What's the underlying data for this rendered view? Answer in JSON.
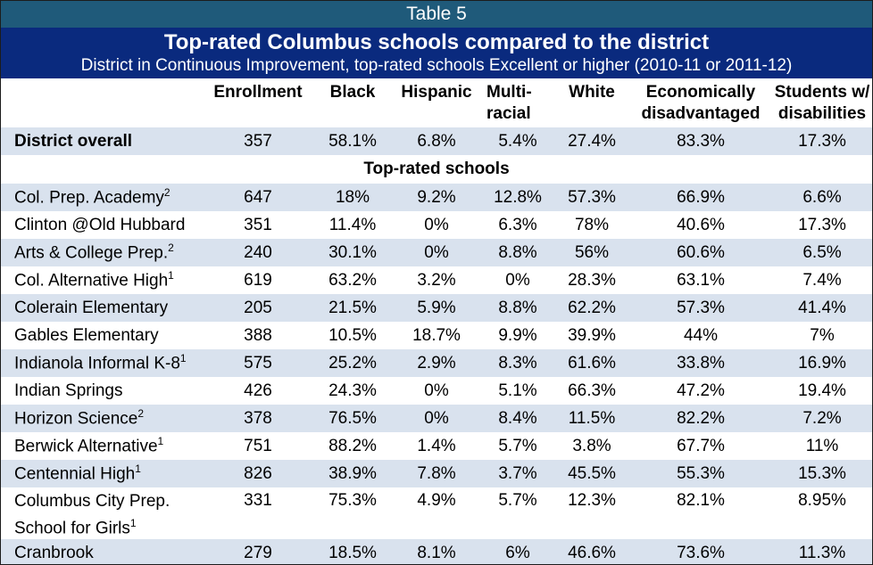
{
  "table_label": "Table 5",
  "title": "Top-rated Columbus schools compared to the district",
  "subtitle": "District in Continuous Improvement, top-rated schools Excellent or higher (2010-11 or 2011-12)",
  "columns": [
    {
      "line1": "",
      "line2": ""
    },
    {
      "line1": "Enrollment",
      "line2": ""
    },
    {
      "line1": "Black",
      "line2": ""
    },
    {
      "line1": "Hispanic",
      "line2": ""
    },
    {
      "line1": "Multi-",
      "line2": "racial"
    },
    {
      "line1": "White",
      "line2": ""
    },
    {
      "line1": "Economically",
      "line2": "disadvantaged"
    },
    {
      "line1": "Students w/",
      "line2": "disabilities"
    }
  ],
  "district": {
    "name": "District overall",
    "values": [
      "357",
      "58.1%",
      "6.8%",
      "5.4%",
      "27.4%",
      "83.3%",
      "17.3%"
    ]
  },
  "section_label": "Top-rated schools",
  "schools": [
    {
      "name": "Col. Prep. Academy",
      "note": "2",
      "values": [
        "647",
        "18%",
        "9.2%",
        "12.8%",
        "57.3%",
        "66.9%",
        "6.6%"
      ]
    },
    {
      "name": "Clinton @Old Hubbard",
      "note": "",
      "values": [
        "351",
        "11.4%",
        "0%",
        "6.3%",
        "78%",
        "40.6%",
        "17.3%"
      ]
    },
    {
      "name": "Arts & College Prep.",
      "note": "2",
      "values": [
        "240",
        "30.1%",
        "0%",
        "8.8%",
        "56%",
        "60.6%",
        "6.5%"
      ]
    },
    {
      "name": "Col. Alternative High",
      "note": "1",
      "values": [
        "619",
        "63.2%",
        "3.2%",
        "0%",
        "28.3%",
        "63.1%",
        "7.4%"
      ]
    },
    {
      "name": "Colerain Elementary",
      "note": "",
      "values": [
        "205",
        "21.5%",
        "5.9%",
        "8.8%",
        "62.2%",
        "57.3%",
        "41.4%"
      ]
    },
    {
      "name": "Gables Elementary",
      "note": "",
      "values": [
        "388",
        "10.5%",
        "18.7%",
        "9.9%",
        "39.9%",
        "44%",
        "7%"
      ]
    },
    {
      "name": "Indianola Informal K-8",
      "note": "1",
      "values": [
        "575",
        "25.2%",
        "2.9%",
        "8.3%",
        "61.6%",
        "33.8%",
        "16.9%"
      ]
    },
    {
      "name": "Indian Springs",
      "note": "",
      "values": [
        "426",
        "24.3%",
        "0%",
        "5.1%",
        "66.3%",
        "47.2%",
        "19.4%"
      ]
    },
    {
      "name": "Horizon Science",
      "note": "2",
      "values": [
        "378",
        "76.5%",
        "0%",
        "8.4%",
        "11.5%",
        "82.2%",
        "7.2%"
      ]
    },
    {
      "name": "Berwick Alternative",
      "note": "1",
      "values": [
        "751",
        "88.2%",
        "1.4%",
        "5.7%",
        "3.8%",
        "67.7%",
        "11%"
      ]
    },
    {
      "name": "Centennial High",
      "note": "1",
      "values": [
        "826",
        "38.9%",
        "7.8%",
        "3.7%",
        "45.5%",
        "55.3%",
        "15.3%"
      ]
    },
    {
      "name": "Columbus City Prep. School for Girls",
      "note": "1",
      "values": [
        "331",
        "75.3%",
        "4.9%",
        "5.7%",
        "12.3%",
        "82.1%",
        "8.95%"
      ]
    },
    {
      "name": "Cranbrook",
      "note": "",
      "values": [
        "279",
        "18.5%",
        "8.1%",
        "6%",
        "46.6%",
        "73.6%",
        "11.3%"
      ]
    }
  ],
  "colors": {
    "table_label_bg": "#1f5a7a",
    "title_bg": "#0a2a7e",
    "band_bg": "#d9e2ee"
  }
}
